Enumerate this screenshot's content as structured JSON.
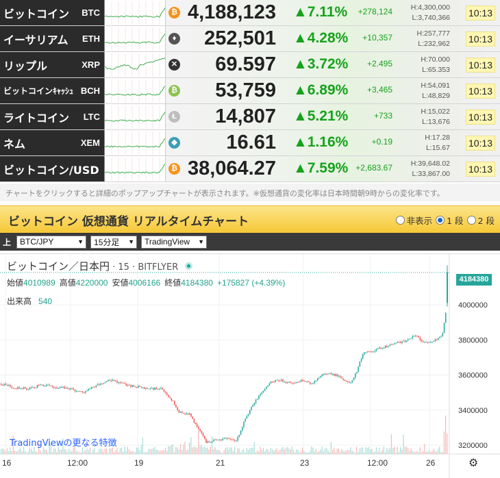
{
  "tickers": [
    {
      "name": "ビットコイン",
      "symbol": "BTC",
      "price": "4,188,123",
      "pct": "▲7.11%",
      "chg": "+278,124",
      "high": "H:4,300,000",
      "low": "L:3,740,366",
      "time": "10:13",
      "coin_color": "#f7931a",
      "coin_glyph": "₿"
    },
    {
      "name": "イーサリアム",
      "symbol": "ETH",
      "price": "252,501",
      "pct": "▲4.28%",
      "chg": "+10,357",
      "high": "H:257,777",
      "low": "L:232,962",
      "time": "10:13",
      "coin_color": "#555555",
      "coin_glyph": "♦"
    },
    {
      "name": "リップル",
      "symbol": "XRP",
      "price": "69.597",
      "pct": "▲3.72%",
      "chg": "+2.495",
      "high": "H:70.000",
      "low": "L:65.353",
      "time": "10:13",
      "coin_color": "#333333",
      "coin_glyph": "✕"
    },
    {
      "name": "ビットコインｷｬｯｼｭ",
      "symbol": "BCH",
      "price": "53,759",
      "pct": "▲6.89%",
      "chg": "+3,465",
      "high": "H:54,091",
      "low": "L:48,829",
      "time": "10:13",
      "coin_color": "#8dc351",
      "coin_glyph": "₿"
    },
    {
      "name": "ライトコイン",
      "symbol": "LTC",
      "price": "14,807",
      "pct": "▲5.21%",
      "chg": "+733",
      "high": "H:15,022",
      "low": "L:13,676",
      "time": "10:13",
      "coin_color": "#bebebe",
      "coin_glyph": "Ł"
    },
    {
      "name": "ネム",
      "symbol": "XEM",
      "price": "16.61",
      "pct": "▲1.16%",
      "chg": "+0.19",
      "high": "H:17.28",
      "low": "L:15.67",
      "time": "10:13",
      "coin_color": "#3a9fb5",
      "coin_glyph": "◆"
    },
    {
      "name": "ビットコイン/USD",
      "symbol": "",
      "price": "38,064.27",
      "pct": "▲7.59%",
      "chg": "+2,683.67",
      "high": "H:39,648.02",
      "low": "L:33,867.00",
      "time": "10:13",
      "coin_color": "#f7931a",
      "coin_glyph": "₿"
    }
  ],
  "note": "チャートをクリックすると詳細のポップアップチャートが表示されます。※仮想通貨の変化率は日本時間朝9時からの変化率です。",
  "chart_header": {
    "title": "ビットコイン 仮想通貨 リアルタイムチャート",
    "opt_hide": "非表示",
    "opt_1": "1 段",
    "opt_2": "2 段"
  },
  "selectbar": {
    "label": "上",
    "pair": "BTC/JPY",
    "interval": "15分足",
    "provider": "TradingView"
  },
  "chart": {
    "symbol_title": "ビットコイン／日本円",
    "symbol_meta": " · 15 · BITFLYER",
    "ohlc": {
      "open_label": "始値",
      "open": "4010989",
      "high_label": "高値",
      "high": "4220000",
      "low_label": "安値",
      "low": "4006166",
      "close_label": "終値",
      "close": "4184380",
      "change": "+175827 (+4.39%)"
    },
    "volume_label": "出来高",
    "volume_value": "540",
    "tv_link": "TradingViewの更なる特徴",
    "last_price": "4184380",
    "colors": {
      "up": "#26a69a",
      "down": "#ef5350",
      "accent": "#26a69a"
    }
  },
  "chart_data": {
    "type": "candlestick",
    "y_ticks": [
      "4000000",
      "3800000",
      "3600000",
      "3400000",
      "3200000"
    ],
    "x_ticks": [
      "16",
      "12:00",
      "19",
      "21",
      "23",
      "12:00",
      "26"
    ],
    "ylim": [
      3150000,
      4250000
    ],
    "close_path": [
      [
        0,
        3550000
      ],
      [
        20,
        3530000
      ],
      [
        40,
        3520000
      ],
      [
        60,
        3545000
      ],
      [
        80,
        3530000
      ],
      [
        100,
        3525000
      ],
      [
        120,
        3500000
      ],
      [
        140,
        3540000
      ],
      [
        160,
        3570000
      ],
      [
        175,
        3555000
      ],
      [
        190,
        3540000
      ],
      [
        210,
        3525000
      ],
      [
        235,
        3520000
      ],
      [
        250,
        3460000
      ],
      [
        260,
        3390000
      ],
      [
        275,
        3380000
      ],
      [
        290,
        3290000
      ],
      [
        300,
        3220000
      ],
      [
        315,
        3230000
      ],
      [
        330,
        3240000
      ],
      [
        345,
        3230000
      ],
      [
        355,
        3330000
      ],
      [
        370,
        3440000
      ],
      [
        385,
        3520000
      ],
      [
        395,
        3560000
      ],
      [
        410,
        3570000
      ],
      [
        425,
        3550000
      ],
      [
        440,
        3570000
      ],
      [
        455,
        3550000
      ],
      [
        470,
        3610000
      ],
      [
        490,
        3600000
      ],
      [
        510,
        3550000
      ],
      [
        520,
        3620000
      ],
      [
        530,
        3730000
      ],
      [
        545,
        3740000
      ],
      [
        560,
        3760000
      ],
      [
        575,
        3780000
      ],
      [
        590,
        3790000
      ],
      [
        605,
        3830000
      ],
      [
        620,
        3780000
      ],
      [
        635,
        3800000
      ],
      [
        645,
        3830000
      ],
      [
        650,
        3960000
      ],
      [
        653,
        4180000
      ]
    ]
  }
}
